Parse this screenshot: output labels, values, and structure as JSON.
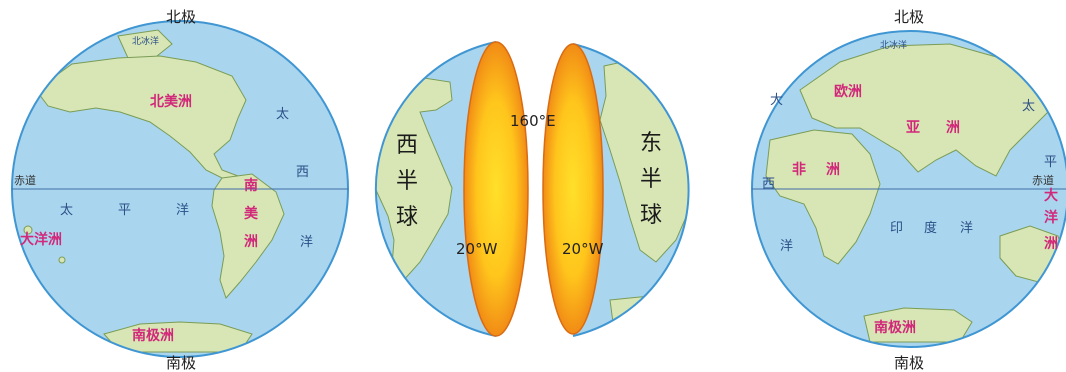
{
  "colors": {
    "ocean": "#a9d5ee",
    "ocean_edge": "#3f96d2",
    "land": "#d8e6b5",
    "land_edge": "#7a9c55",
    "cut_face_center": "#ffd21a",
    "cut_face_edge": "#ee7d14",
    "continent_text": "#d2287a"
  },
  "left_globe": {
    "north_pole": "北极",
    "south_pole": "南极",
    "equator": "赤道",
    "arctic_ocean": "北冰洋",
    "north_america": "北美洲",
    "south_america": [
      "南",
      "美",
      "洲"
    ],
    "oceania": "大洋洲",
    "antarctica": "南极洲",
    "pacific": [
      "太",
      "平",
      "洋"
    ],
    "atlantic": [
      "太",
      "西",
      "洋"
    ]
  },
  "middle": {
    "west_hemisphere": [
      "西",
      "半",
      "球"
    ],
    "east_hemisphere": [
      "东",
      "半",
      "球"
    ],
    "lon_160e": "160°E",
    "lon_20w_left": "20°W",
    "lon_20w_right": "20°W"
  },
  "right_globe": {
    "north_pole": "北极",
    "south_pole": "南极",
    "equator": "赤道",
    "arctic_ocean": "北冰洋",
    "europe": "欧洲",
    "asia": [
      "亚",
      "洲"
    ],
    "africa": [
      "非",
      "洲"
    ],
    "oceania": [
      "大",
      "洋",
      "洲"
    ],
    "antarctica": "南极洲",
    "indian_ocean": [
      "印",
      "度",
      "洋"
    ],
    "atlantic": [
      "大",
      "西",
      "洋"
    ],
    "pacific": [
      "太",
      "平"
    ]
  }
}
